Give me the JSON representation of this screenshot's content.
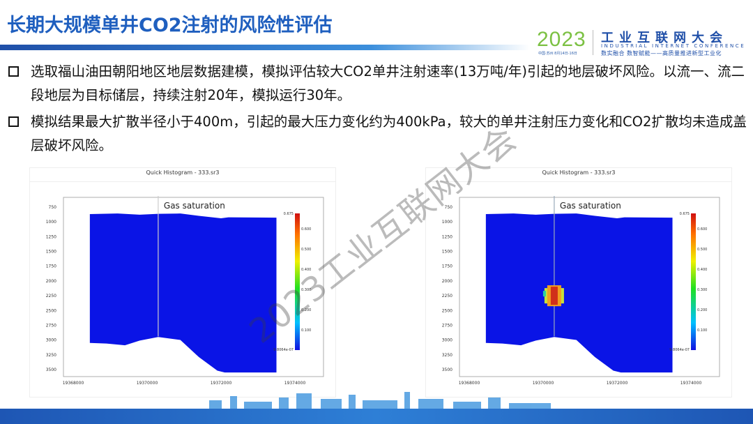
{
  "slide": {
    "title": "长期大规模单井CO2注射的风险性评估"
  },
  "logo": {
    "year": "2023",
    "location_date": "中国·苏州 8月14日-16日",
    "name_cn": "工业互联网大会",
    "name_en": "INDUSTRIAL INTERNET CONFERENCE",
    "slogan": "数实融合 数智赋能——高质量推进新型工业化"
  },
  "bullets": [
    {
      "text": "选取福山油田朝阳地区地层数据建模，模拟评估较大CO2单井注射速率(13万吨/年)引起的地层破坏风险。以流一、流二段地层为目标储层，持续注射20年，模拟运行30年。"
    },
    {
      "text": "模拟结果最大扩散半径小于400m，引起的最大压力变化约为400kPa，较大的单井注射压力变化和CO2扩散均未造成盖层破坏风险。"
    }
  ],
  "watermark": "2023工业互联网大会",
  "panels": [
    {
      "window_title": "Quick Histogram - 333.sr3",
      "plot_label": "Gas saturation",
      "plume": false
    },
    {
      "window_title": "Quick Histogram - 333.sr3",
      "plot_label": "Gas saturation",
      "plume": true
    }
  ],
  "plot_axes": {
    "x_ticks": [
      "19368000",
      "19370000",
      "19372000",
      "19374000"
    ],
    "y_ticks": [
      "750",
      "1000",
      "1250",
      "1500",
      "1750",
      "2000",
      "2250",
      "2500",
      "2750",
      "3000",
      "3250",
      "3500"
    ],
    "colorbar_max": "0.675",
    "colorbar_min": "9.8064e-07",
    "colorbar_ticks": [
      "0.600",
      "0.500",
      "0.400",
      "0.300",
      "0.200",
      "0.100"
    ]
  },
  "colors": {
    "title": "#1f5fbf",
    "model": "#0a14e6",
    "accent_green": "#7cc143",
    "brand_blue": "#1f4fa8"
  }
}
